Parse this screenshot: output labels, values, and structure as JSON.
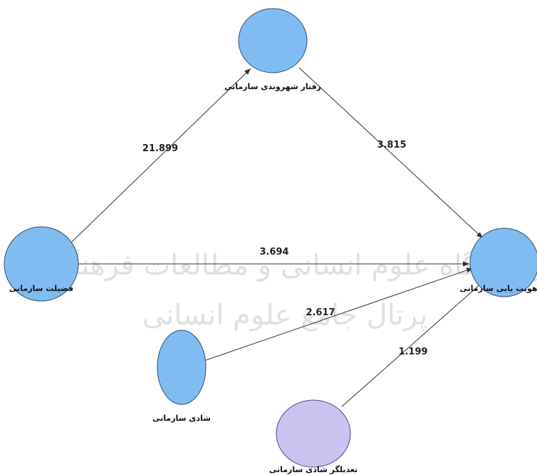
{
  "nodes": [
    {
      "label": "رفتار شهروندی سازمانی"
    },
    {
      "label": "فضیلت سازمانی"
    },
    {
      "label": "هویت یابی سازمانی"
    },
    {
      "label": "شادی سازمانی"
    },
    {
      "label": "تعدیلگر شادی سازمانی"
    }
  ],
  "edges": [
    {
      "value": 21.899
    },
    {
      "value": 3.815
    },
    {
      "value": 3.694
    },
    {
      "value": 2.617
    },
    {
      "value": 1.199
    }
  ],
  "watermark": [
    "پژوهشگاه علوم انسانی و مطالعات فرهنگی",
    "پرتال جامع علوم انسانی"
  ]
}
